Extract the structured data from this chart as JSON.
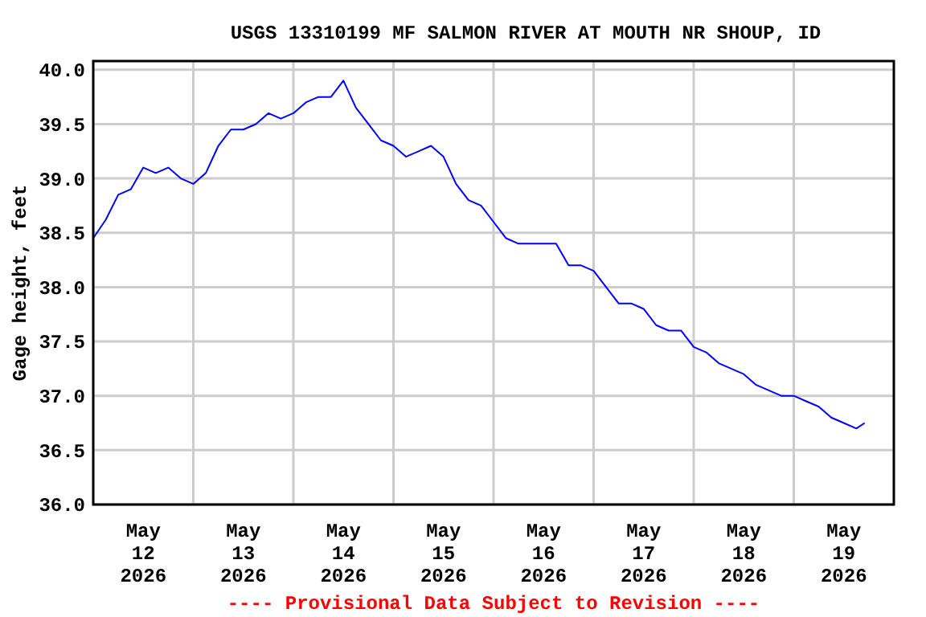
{
  "chart_data": {
    "type": "line",
    "title": "USGS 13310199 MF SALMON RIVER AT MOUTH NR SHOUP, ID",
    "ylabel": "Gage height, feet",
    "annotations": [
      "---- Provisional Data Subject to Revision ----"
    ],
    "x": [
      "2026-05-12T00:00",
      "2026-05-12T03:00",
      "2026-05-12T06:00",
      "2026-05-12T09:00",
      "2026-05-12T12:00",
      "2026-05-12T15:00",
      "2026-05-12T18:00",
      "2026-05-12T21:00",
      "2026-05-13T00:00",
      "2026-05-13T03:00",
      "2026-05-13T06:00",
      "2026-05-13T09:00",
      "2026-05-13T12:00",
      "2026-05-13T15:00",
      "2026-05-13T18:00",
      "2026-05-13T21:00",
      "2026-05-14T00:00",
      "2026-05-14T03:00",
      "2026-05-14T06:00",
      "2026-05-14T09:00",
      "2026-05-14T12:00",
      "2026-05-14T15:00",
      "2026-05-14T18:00",
      "2026-05-14T21:00",
      "2026-05-15T00:00",
      "2026-05-15T03:00",
      "2026-05-15T06:00",
      "2026-05-15T09:00",
      "2026-05-15T12:00",
      "2026-05-15T15:00",
      "2026-05-15T18:00",
      "2026-05-15T21:00",
      "2026-05-16T00:00",
      "2026-05-16T03:00",
      "2026-05-16T06:00",
      "2026-05-16T09:00",
      "2026-05-16T12:00",
      "2026-05-16T15:00",
      "2026-05-16T18:00",
      "2026-05-16T21:00",
      "2026-05-17T00:00",
      "2026-05-17T03:00",
      "2026-05-17T06:00",
      "2026-05-17T09:00",
      "2026-05-17T12:00",
      "2026-05-17T15:00",
      "2026-05-17T18:00",
      "2026-05-17T21:00",
      "2026-05-18T00:00",
      "2026-05-18T03:00",
      "2026-05-18T06:00",
      "2026-05-18T09:00",
      "2026-05-18T12:00",
      "2026-05-18T15:00",
      "2026-05-18T18:00",
      "2026-05-18T21:00",
      "2026-05-19T00:00",
      "2026-05-19T03:00",
      "2026-05-19T06:00",
      "2026-05-19T09:00",
      "2026-05-19T12:00",
      "2026-05-19T15:00",
      "2026-05-19T17:00"
    ],
    "series": [
      {
        "color": "#0000ff",
        "values": [
          38.45,
          38.62,
          38.85,
          38.9,
          39.1,
          39.05,
          39.1,
          39.0,
          38.95,
          39.05,
          39.3,
          39.45,
          39.45,
          39.5,
          39.6,
          39.55,
          39.6,
          39.7,
          39.75,
          39.75,
          39.9,
          39.65,
          39.5,
          39.35,
          39.3,
          39.2,
          39.25,
          39.3,
          39.2,
          38.95,
          38.8,
          38.75,
          38.6,
          38.45,
          38.4,
          38.4,
          38.4,
          38.4,
          38.2,
          38.2,
          38.15,
          38.0,
          37.85,
          37.85,
          37.8,
          37.65,
          37.6,
          37.6,
          37.45,
          37.4,
          37.3,
          37.25,
          37.2,
          37.1,
          37.05,
          37.0,
          37.0,
          36.95,
          36.9,
          36.8,
          36.75,
          36.7,
          36.75
        ]
      }
    ],
    "xlim": [
      "2026-05-12T00:00",
      "2026-05-20T00:00"
    ],
    "xticks": [
      {
        "value": "2026-05-12T12:00",
        "label": "May\n12\n2026"
      },
      {
        "value": "2026-05-13T12:00",
        "label": "May\n13\n2026"
      },
      {
        "value": "2026-05-14T12:00",
        "label": "May\n14\n2026"
      },
      {
        "value": "2026-05-15T12:00",
        "label": "May\n15\n2026"
      },
      {
        "value": "2026-05-16T12:00",
        "label": "May\n16\n2026"
      },
      {
        "value": "2026-05-17T12:00",
        "label": "May\n17\n2026"
      },
      {
        "value": "2026-05-18T12:00",
        "label": "May\n18\n2026"
      },
      {
        "value": "2026-05-19T12:00",
        "label": "May\n19\n2026"
      },
      {
        "value": "2026-05-13T00:00",
        "label": null
      },
      {
        "value": "2026-05-14T00:00",
        "label": null
      },
      {
        "value": "2026-05-15T00:00",
        "label": null
      },
      {
        "value": "2026-05-16T00:00",
        "label": null
      },
      {
        "value": "2026-05-17T00:00",
        "label": null
      },
      {
        "value": "2026-05-18T00:00",
        "label": null
      },
      {
        "value": "2026-05-19T00:00",
        "label": null
      }
    ],
    "ylim": [
      36,
      40.08
    ],
    "yticks": [
      {
        "value": 36,
        "label": "36.0"
      },
      {
        "value": 36.5,
        "label": "36.5"
      },
      {
        "value": 37,
        "label": "37.0"
      },
      {
        "value": 37.5,
        "label": "37.5"
      },
      {
        "value": 38,
        "label": "38.0"
      },
      {
        "value": 38.5,
        "label": "38.5"
      },
      {
        "value": 39,
        "label": "39.0"
      },
      {
        "value": 39.5,
        "label": "39.5"
      },
      {
        "value": 40,
        "label": "40.0"
      }
    ],
    "grid": true
  }
}
